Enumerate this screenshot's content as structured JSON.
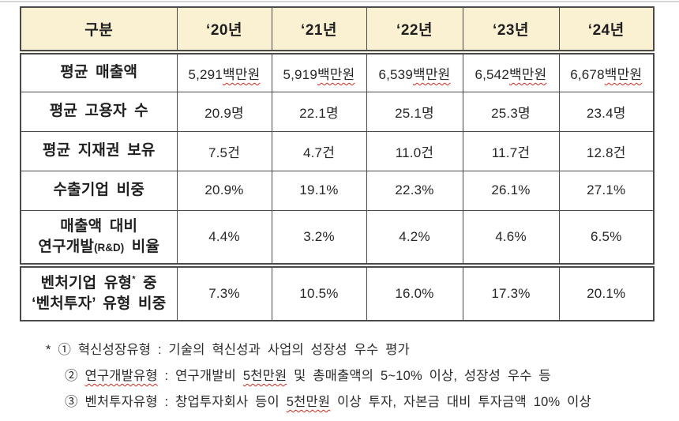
{
  "colors": {
    "header_bg": "#FAF0D2",
    "border": "#4A4A4A",
    "text": "#1F1F1F",
    "underline_red": "#CC2A1E"
  },
  "table": {
    "corner_header": "구분",
    "year_headers": [
      "‘20년",
      "‘21년",
      "‘22년",
      "‘23년",
      "‘24년"
    ],
    "rows": [
      {
        "label_lines": [
          [
            {
              "t": "평균 매출액"
            }
          ]
        ],
        "unit": "백만원",
        "unit_wavy": true,
        "nums": [
          "5,291",
          "5,919",
          "6,539",
          "6,542",
          "6,678"
        ]
      },
      {
        "label_lines": [
          [
            {
              "t": "평균 고용자 수"
            }
          ]
        ],
        "unit": "명",
        "unit_wavy": false,
        "nums": [
          "20.9",
          "22.1",
          "25.1",
          "25.3",
          "23.4"
        ]
      },
      {
        "label_lines": [
          [
            {
              "t": "평균 지재권 보유"
            }
          ]
        ],
        "unit": "건",
        "unit_wavy": false,
        "nums": [
          "7.5",
          "4.7",
          "11.0",
          "11.7",
          "12.8"
        ]
      },
      {
        "label_lines": [
          [
            {
              "t": "수출기업 비중"
            }
          ]
        ],
        "unit": "%",
        "unit_wavy": false,
        "nums": [
          "20.9",
          "19.1",
          "22.3",
          "26.1",
          "27.1"
        ]
      },
      {
        "label_lines": [
          [
            {
              "t": "매출액 대비"
            }
          ],
          [
            {
              "t": "연구개발"
            },
            {
              "t": "(R&D)",
              "small": true
            },
            {
              "t": " 비율"
            }
          ]
        ],
        "unit": "%",
        "unit_wavy": false,
        "nums": [
          "4.4",
          "3.2",
          "4.2",
          "4.6",
          "6.5"
        ],
        "tall": true
      },
      {
        "label_lines": [
          [
            {
              "t": "벤처기업 유형"
            },
            {
              "t": "*",
              "sup": true
            },
            {
              "t": " 중"
            }
          ],
          [
            {
              "t": "‘벤처투자’ 유형 비중"
            }
          ]
        ],
        "unit": "%",
        "unit_wavy": false,
        "nums": [
          "7.3",
          "10.5",
          "16.0",
          "17.3",
          "20.1"
        ],
        "tall": true,
        "double_top": true
      }
    ]
  },
  "footnotes": [
    {
      "indent": false,
      "segments": [
        {
          "t": "* ① 혁신성장유형 : 기술의 혁신성과 사업의 성장성 우수 평가"
        }
      ]
    },
    {
      "indent": true,
      "segments": [
        {
          "t": "② "
        },
        {
          "t": "연구개발유형",
          "wavy": true
        },
        {
          "t": " : 연구개발비 "
        },
        {
          "t": "5천만원",
          "wavy": true
        },
        {
          "t": " 및 총매출액의 5~10% 이상, 성장성 우수 등"
        }
      ]
    },
    {
      "indent": true,
      "segments": [
        {
          "t": "③ 벤처투자유형 : 창업투자회사 등이 "
        },
        {
          "t": "5천만원",
          "wavy": true
        },
        {
          "t": " 이상 투자, 자본금 대비 투자금액 10% 이상"
        }
      ]
    }
  ]
}
